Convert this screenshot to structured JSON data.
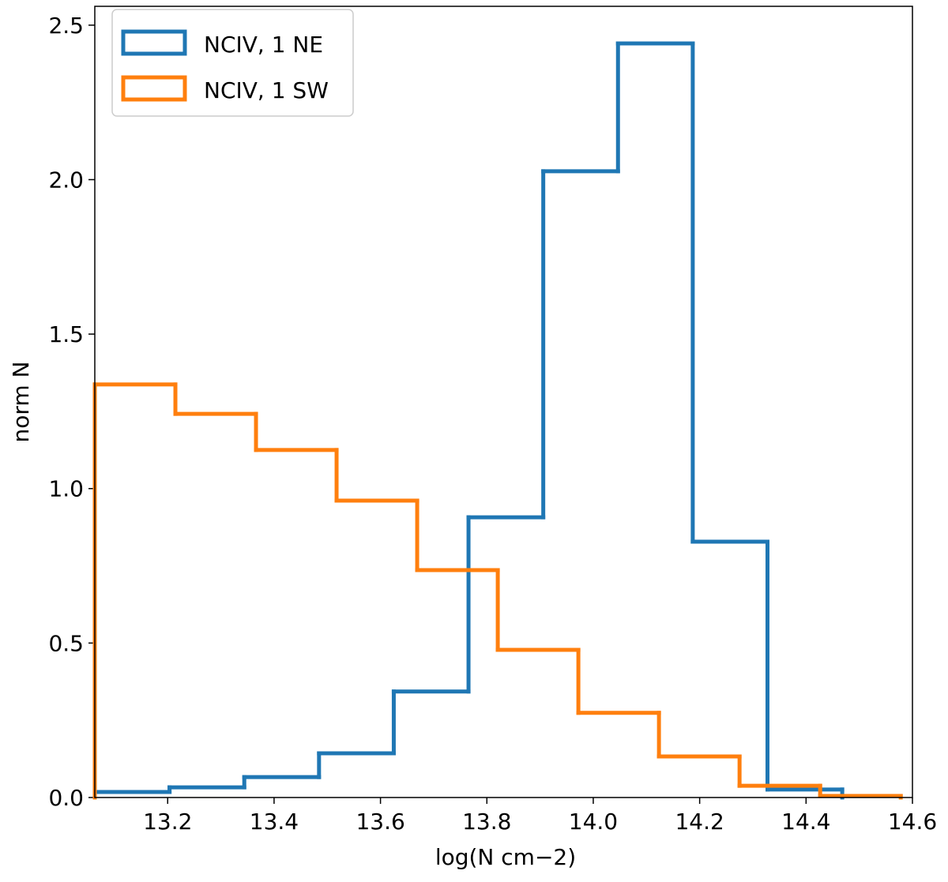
{
  "chart_data": {
    "type": "histogram",
    "xlabel": "log(N cm−2)",
    "ylabel": "norm N",
    "series": [
      {
        "name": "NCIV, 1 NE",
        "color": "#1f77b4",
        "bins": [
          13.063,
          13.2035,
          13.344,
          13.4845,
          13.625,
          13.7655,
          13.906,
          14.0465,
          14.187,
          14.3275,
          14.468
        ],
        "values": [
          0.018,
          0.033,
          0.066,
          0.143,
          0.343,
          0.907,
          2.027,
          2.441,
          0.828,
          0.026
        ]
      },
      {
        "name": "NCIV, 1 SW",
        "color": "#ff7f0e",
        "bins": [
          13.063,
          13.2145,
          13.366,
          13.5175,
          13.669,
          13.8205,
          13.972,
          14.1235,
          14.275,
          14.4265,
          14.578
        ],
        "values": [
          1.337,
          1.242,
          1.125,
          0.961,
          0.736,
          0.478,
          0.274,
          0.133,
          0.038,
          0.005
        ]
      }
    ],
    "xlim": [
      13.063,
      14.6
    ],
    "ylim": [
      0,
      2.561
    ],
    "xticks": [
      13.2,
      13.4,
      13.6,
      13.8,
      {
        "value": 14,
        "label": "14.0"
      },
      14.2,
      14.4,
      14.6
    ],
    "yticks": [
      {
        "value": 0,
        "label": "0.0"
      },
      0.5,
      {
        "value": 1,
        "label": "1.0"
      },
      1.5,
      {
        "value": 2,
        "label": "2.0"
      },
      2.5
    ],
    "legend": "upper left"
  }
}
